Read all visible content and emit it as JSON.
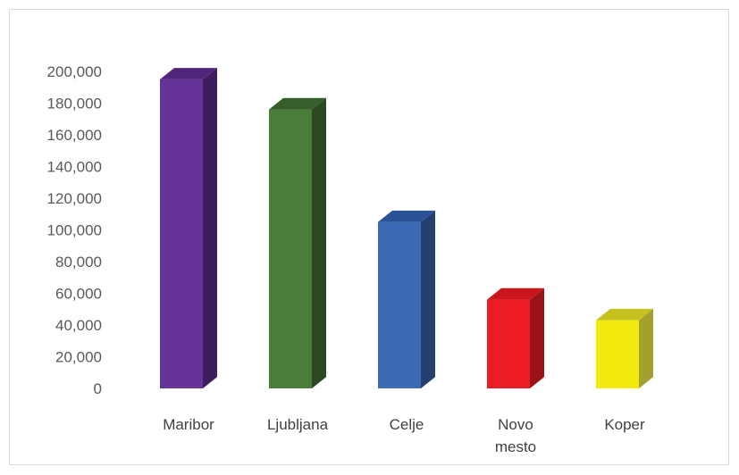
{
  "chart_data": {
    "type": "bar",
    "style": "3d-column",
    "categories": [
      [
        "Maribor"
      ],
      [
        "Ljubljana"
      ],
      [
        "Celje"
      ],
      [
        "Novo",
        "mesto"
      ],
      [
        "Koper"
      ]
    ],
    "values": [
      195000,
      176000,
      105000,
      56000,
      43000
    ],
    "colors": [
      "#663399",
      "#4a7d3a",
      "#3d6ab5",
      "#ec1c24",
      "#f2ea0c"
    ],
    "side_colors": [
      "#3e1d5e",
      "#2c4a22",
      "#24406e",
      "#9a1318",
      "#a3a02e"
    ],
    "top_colors": [
      "#4e2579",
      "#365e2a",
      "#2b5196",
      "#c8161c",
      "#c7c120"
    ],
    "yticks": [
      "0",
      "20,000",
      "40,000",
      "60,000",
      "80,000",
      "100,000",
      "120,000",
      "140,000",
      "160,000",
      "180,000",
      "200,000"
    ],
    "ylim": [
      0,
      200000
    ],
    "title": "",
    "xlabel": "",
    "ylabel": "",
    "grid": false,
    "legend": "none"
  }
}
